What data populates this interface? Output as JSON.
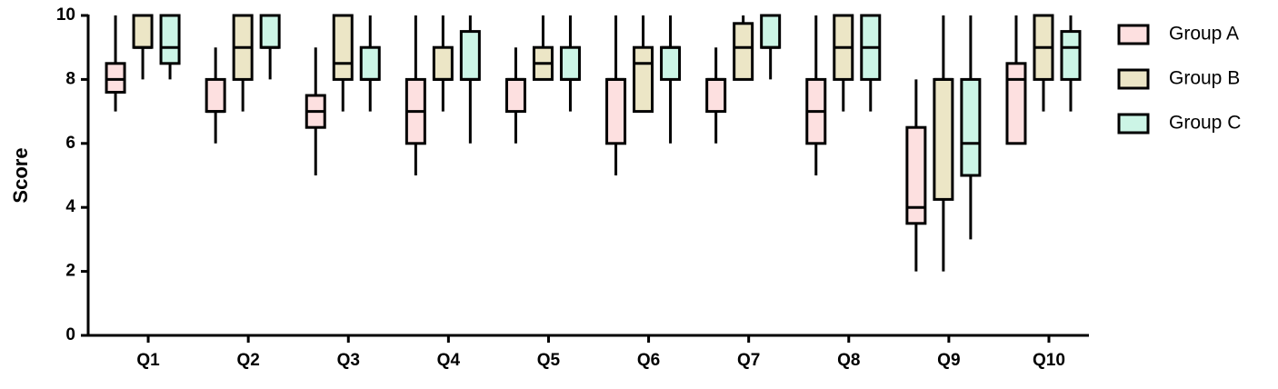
{
  "chart_data": {
    "type": "box",
    "y_label": "Score",
    "categories": [
      "Q1",
      "Q2",
      "Q3",
      "Q4",
      "Q5",
      "Q6",
      "Q7",
      "Q8",
      "Q9",
      "Q10"
    ],
    "ylim": [
      0,
      10
    ],
    "yticks": [
      0,
      2,
      4,
      6,
      8,
      10
    ],
    "series": [
      {
        "name": "Group A",
        "color": "#fde0e0",
        "min": [
          7,
          6,
          5,
          5,
          6,
          5,
          6,
          5,
          2,
          6
        ],
        "q1": [
          7.6,
          7,
          6.5,
          6,
          7,
          6,
          7,
          6,
          3.5,
          6
        ],
        "median": [
          8,
          7,
          7,
          7,
          8,
          8,
          8,
          7,
          4,
          8
        ],
        "q3": [
          8.5,
          8,
          7.5,
          8,
          8,
          8,
          8,
          8,
          6.5,
          8.5
        ],
        "max": [
          10,
          9,
          9,
          10,
          9,
          10,
          9,
          10,
          8,
          10
        ]
      },
      {
        "name": "Group B",
        "color": "#ece6c6",
        "min": [
          8,
          7,
          7,
          7,
          8,
          7,
          8,
          7,
          2,
          7
        ],
        "q1": [
          9,
          8,
          8,
          8,
          8,
          7,
          8,
          8,
          4.25,
          8
        ],
        "median": [
          9,
          9,
          8.5,
          8,
          8.5,
          8.5,
          9,
          9,
          8,
          9
        ],
        "q3": [
          10,
          10,
          10,
          9,
          9,
          9,
          9.75,
          10,
          8,
          10
        ],
        "max": [
          10,
          10,
          10,
          10,
          10,
          10,
          10,
          10,
          10,
          10
        ]
      },
      {
        "name": "Group C",
        "color": "#ccf5e6",
        "min": [
          8,
          8,
          7,
          6,
          7,
          6,
          8,
          7,
          3,
          7
        ],
        "q1": [
          8.5,
          9,
          8,
          8,
          8,
          8,
          9,
          8,
          5,
          8
        ],
        "median": [
          9,
          9,
          8,
          8,
          8,
          9,
          9,
          9,
          6,
          9
        ],
        "q3": [
          10,
          10,
          9,
          9.5,
          9,
          9,
          10,
          10,
          8,
          9.5
        ],
        "max": [
          10,
          10,
          10,
          10,
          10,
          10,
          10,
          10,
          10,
          10
        ]
      }
    ]
  }
}
